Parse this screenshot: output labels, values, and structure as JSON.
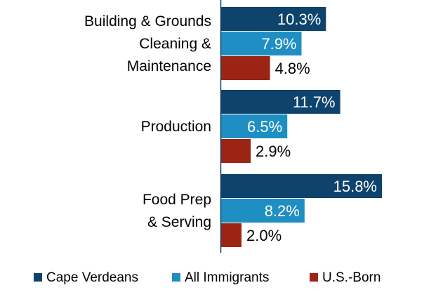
{
  "chart_data": {
    "type": "bar",
    "orientation": "horizontal",
    "categories": [
      [
        "Building & Grounds",
        "Cleaning &",
        "Maintenance"
      ],
      [
        "Production"
      ],
      [
        "Food Prep",
        "& Serving"
      ]
    ],
    "series": [
      {
        "name": "Cape Verdeans",
        "color": "#0e436c",
        "values": [
          10.3,
          11.7,
          15.8
        ],
        "labels": [
          "10.3%",
          "11.7%",
          "15.8%"
        ],
        "label_color": "#ffffff",
        "label_inside": true
      },
      {
        "name": "All Immigrants",
        "color": "#1f8fc3",
        "values": [
          7.9,
          6.5,
          8.2
        ],
        "labels": [
          "7.9%",
          "6.5%",
          "8.2%"
        ],
        "label_color": "#ffffff",
        "label_inside": true
      },
      {
        "name": "U.S.-Born",
        "color": "#9c2414",
        "values": [
          4.8,
          2.9,
          2.0
        ],
        "labels": [
          "4.8%",
          "2.9%",
          "2.0%"
        ],
        "label_color": "#000000",
        "label_inside": false
      }
    ],
    "xlim": [
      0,
      22
    ],
    "grid": false,
    "legend_position": "bottom"
  }
}
